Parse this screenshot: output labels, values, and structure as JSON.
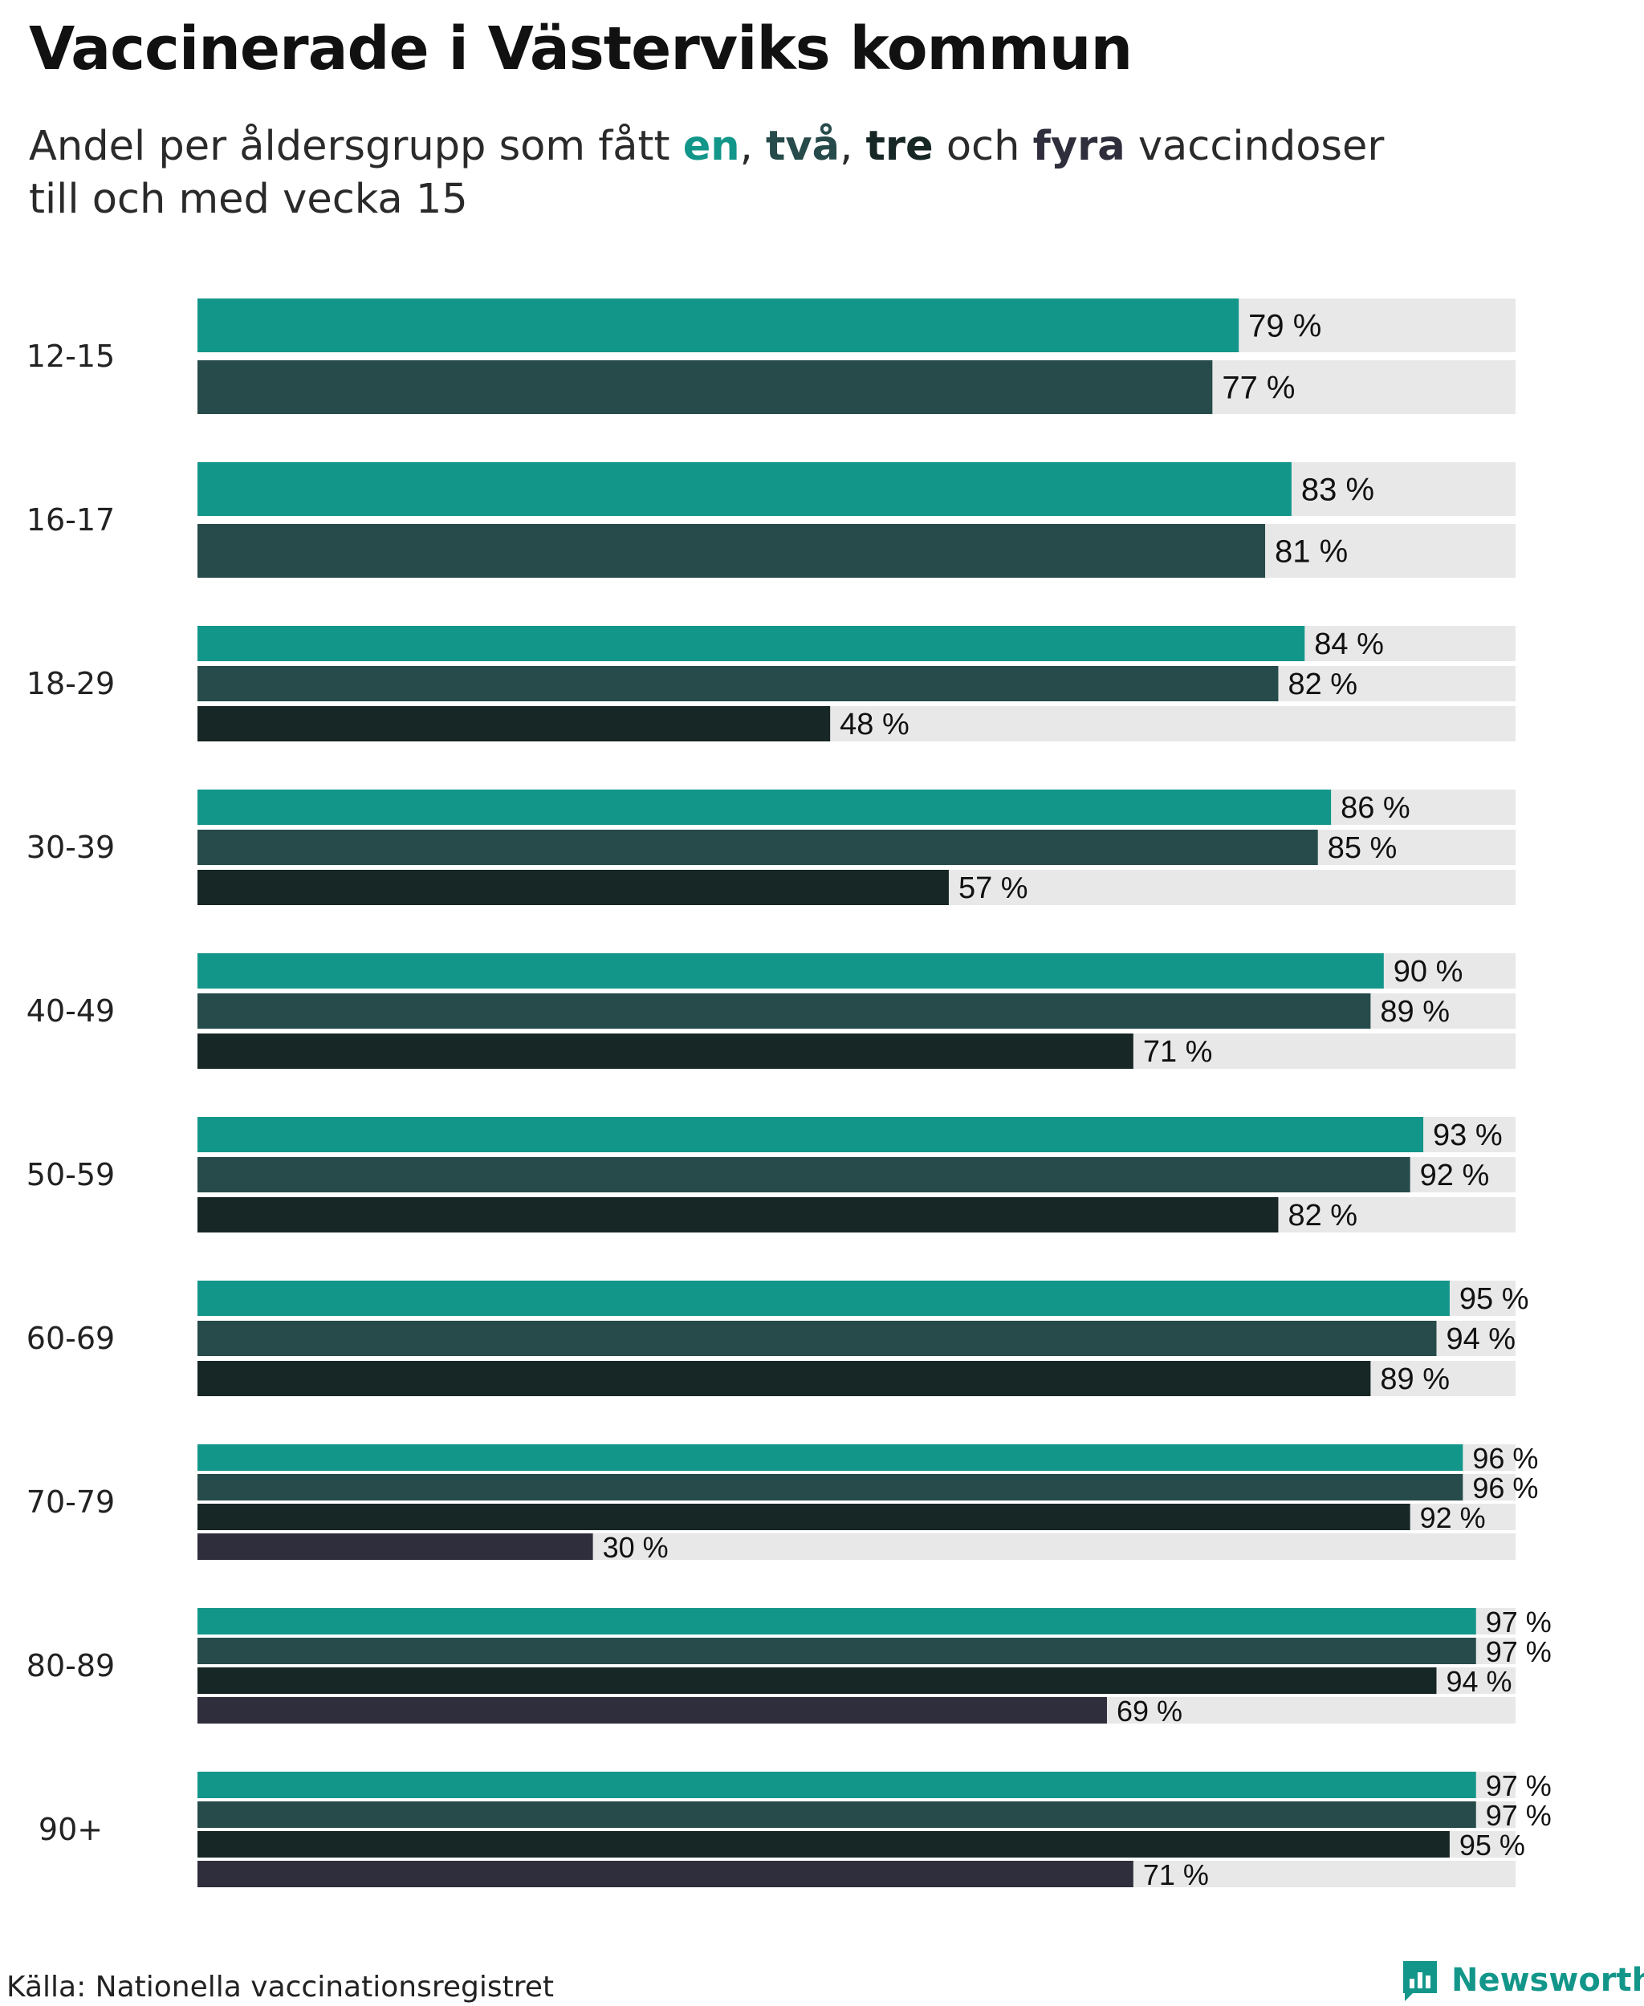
{
  "title": "Vaccinerade i Västerviks kommun",
  "subtitle": {
    "line1_prefix": "Andel per åldersgrupp som fått ",
    "dose1": "en",
    "sep1": ", ",
    "dose2": "två",
    "sep2": ", ",
    "dose3": "tre",
    "sep3": " och ",
    "dose4": "fyra",
    "line1_suffix": " vaccindoser",
    "line2": "till och med vecka 15"
  },
  "source": "Källa: Nationella vaccinationsregistret",
  "brand": {
    "name": "Newsworthy",
    "icon": "newsworthy-logo-icon"
  },
  "colors": {
    "dose1": "#13968a",
    "dose2": "#264b4a",
    "dose3": "#172726",
    "dose4": "#2f2e3c",
    "track": "#e8e8e8",
    "label": "#111111"
  },
  "chart_data": {
    "type": "bar",
    "orientation": "horizontal",
    "title": "Vaccinerade i Västerviks kommun",
    "unit": "%",
    "value_suffix": " %",
    "xlim": [
      0,
      100
    ],
    "grid": false,
    "categories": [
      "12-15",
      "16-17",
      "18-29",
      "30-39",
      "40-49",
      "50-59",
      "60-69",
      "70-79",
      "80-89",
      "90+"
    ],
    "series": [
      {
        "name": "en",
        "values": [
          79,
          83,
          84,
          86,
          90,
          93,
          95,
          96,
          97,
          97
        ]
      },
      {
        "name": "två",
        "values": [
          77,
          81,
          82,
          85,
          89,
          92,
          94,
          96,
          97,
          97
        ]
      },
      {
        "name": "tre",
        "values": [
          null,
          null,
          48,
          57,
          71,
          82,
          89,
          92,
          94,
          95
        ]
      },
      {
        "name": "fyra",
        "values": [
          null,
          null,
          null,
          null,
          null,
          null,
          null,
          30,
          69,
          71
        ]
      }
    ]
  }
}
